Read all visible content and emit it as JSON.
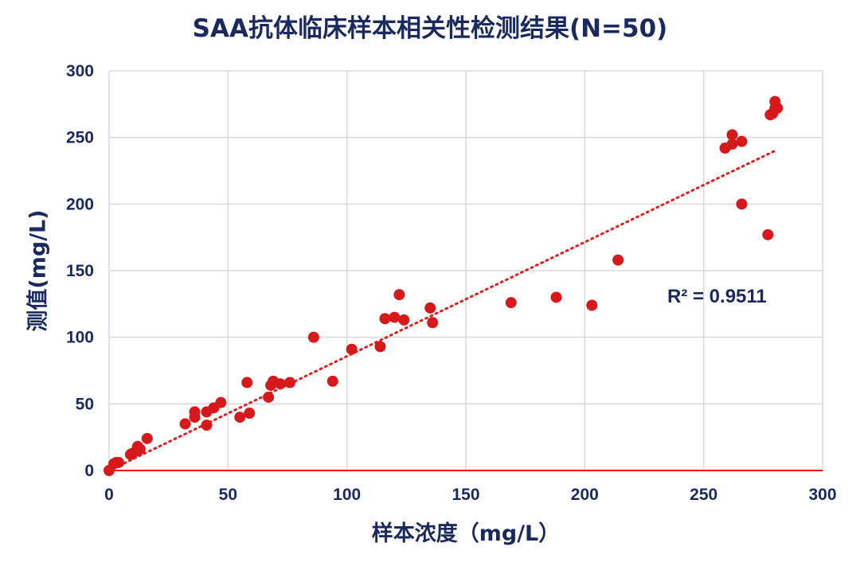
{
  "chart_data": {
    "type": "scatter",
    "title": "SAA抗体临床样本相关性检测结果(N=50)",
    "xlabel": "样本浓度（mg/L）",
    "ylabel": "测值(mg/L)",
    "xlim": [
      0,
      300
    ],
    "ylim": [
      0,
      300
    ],
    "xticks": [
      "0",
      "50",
      "100",
      "150",
      "200",
      "250",
      "300"
    ],
    "yticks": [
      "0",
      "50",
      "100",
      "150",
      "200",
      "250",
      "300"
    ],
    "grid": true,
    "annotation": "R² = 0.9511",
    "colors": {
      "points": "#d7191c",
      "trendline": "#e02020",
      "axis": "#ff0000",
      "grid": "#d9d9d9",
      "text": "#1a2a5e"
    },
    "trendline": {
      "style": "dotted",
      "x": [
        0,
        280
      ],
      "y": [
        0,
        240
      ]
    },
    "points": [
      {
        "x": 0,
        "y": 0
      },
      {
        "x": 2,
        "y": 5
      },
      {
        "x": 3,
        "y": 6
      },
      {
        "x": 4,
        "y": 6
      },
      {
        "x": 9,
        "y": 12
      },
      {
        "x": 10,
        "y": 13
      },
      {
        "x": 12,
        "y": 15
      },
      {
        "x": 12,
        "y": 18
      },
      {
        "x": 13,
        "y": 16
      },
      {
        "x": 16,
        "y": 24
      },
      {
        "x": 32,
        "y": 35
      },
      {
        "x": 36,
        "y": 40
      },
      {
        "x": 36,
        "y": 44
      },
      {
        "x": 41,
        "y": 34
      },
      {
        "x": 41,
        "y": 44
      },
      {
        "x": 44,
        "y": 47
      },
      {
        "x": 47,
        "y": 51
      },
      {
        "x": 55,
        "y": 40
      },
      {
        "x": 58,
        "y": 66
      },
      {
        "x": 59,
        "y": 43
      },
      {
        "x": 67,
        "y": 55
      },
      {
        "x": 68,
        "y": 64
      },
      {
        "x": 69,
        "y": 67
      },
      {
        "x": 72,
        "y": 65
      },
      {
        "x": 76,
        "y": 66
      },
      {
        "x": 86,
        "y": 100
      },
      {
        "x": 94,
        "y": 67
      },
      {
        "x": 102,
        "y": 91
      },
      {
        "x": 114,
        "y": 93
      },
      {
        "x": 116,
        "y": 114
      },
      {
        "x": 120,
        "y": 115
      },
      {
        "x": 122,
        "y": 132
      },
      {
        "x": 124,
        "y": 113
      },
      {
        "x": 135,
        "y": 122
      },
      {
        "x": 136,
        "y": 111
      },
      {
        "x": 169,
        "y": 126
      },
      {
        "x": 188,
        "y": 130
      },
      {
        "x": 203,
        "y": 124
      },
      {
        "x": 214,
        "y": 158
      },
      {
        "x": 259,
        "y": 242
      },
      {
        "x": 262,
        "y": 245
      },
      {
        "x": 262,
        "y": 252
      },
      {
        "x": 266,
        "y": 247
      },
      {
        "x": 266,
        "y": 200
      },
      {
        "x": 277,
        "y": 177
      },
      {
        "x": 278,
        "y": 267
      },
      {
        "x": 279,
        "y": 268
      },
      {
        "x": 280,
        "y": 272
      },
      {
        "x": 280,
        "y": 277
      },
      {
        "x": 281,
        "y": 272
      }
    ]
  }
}
